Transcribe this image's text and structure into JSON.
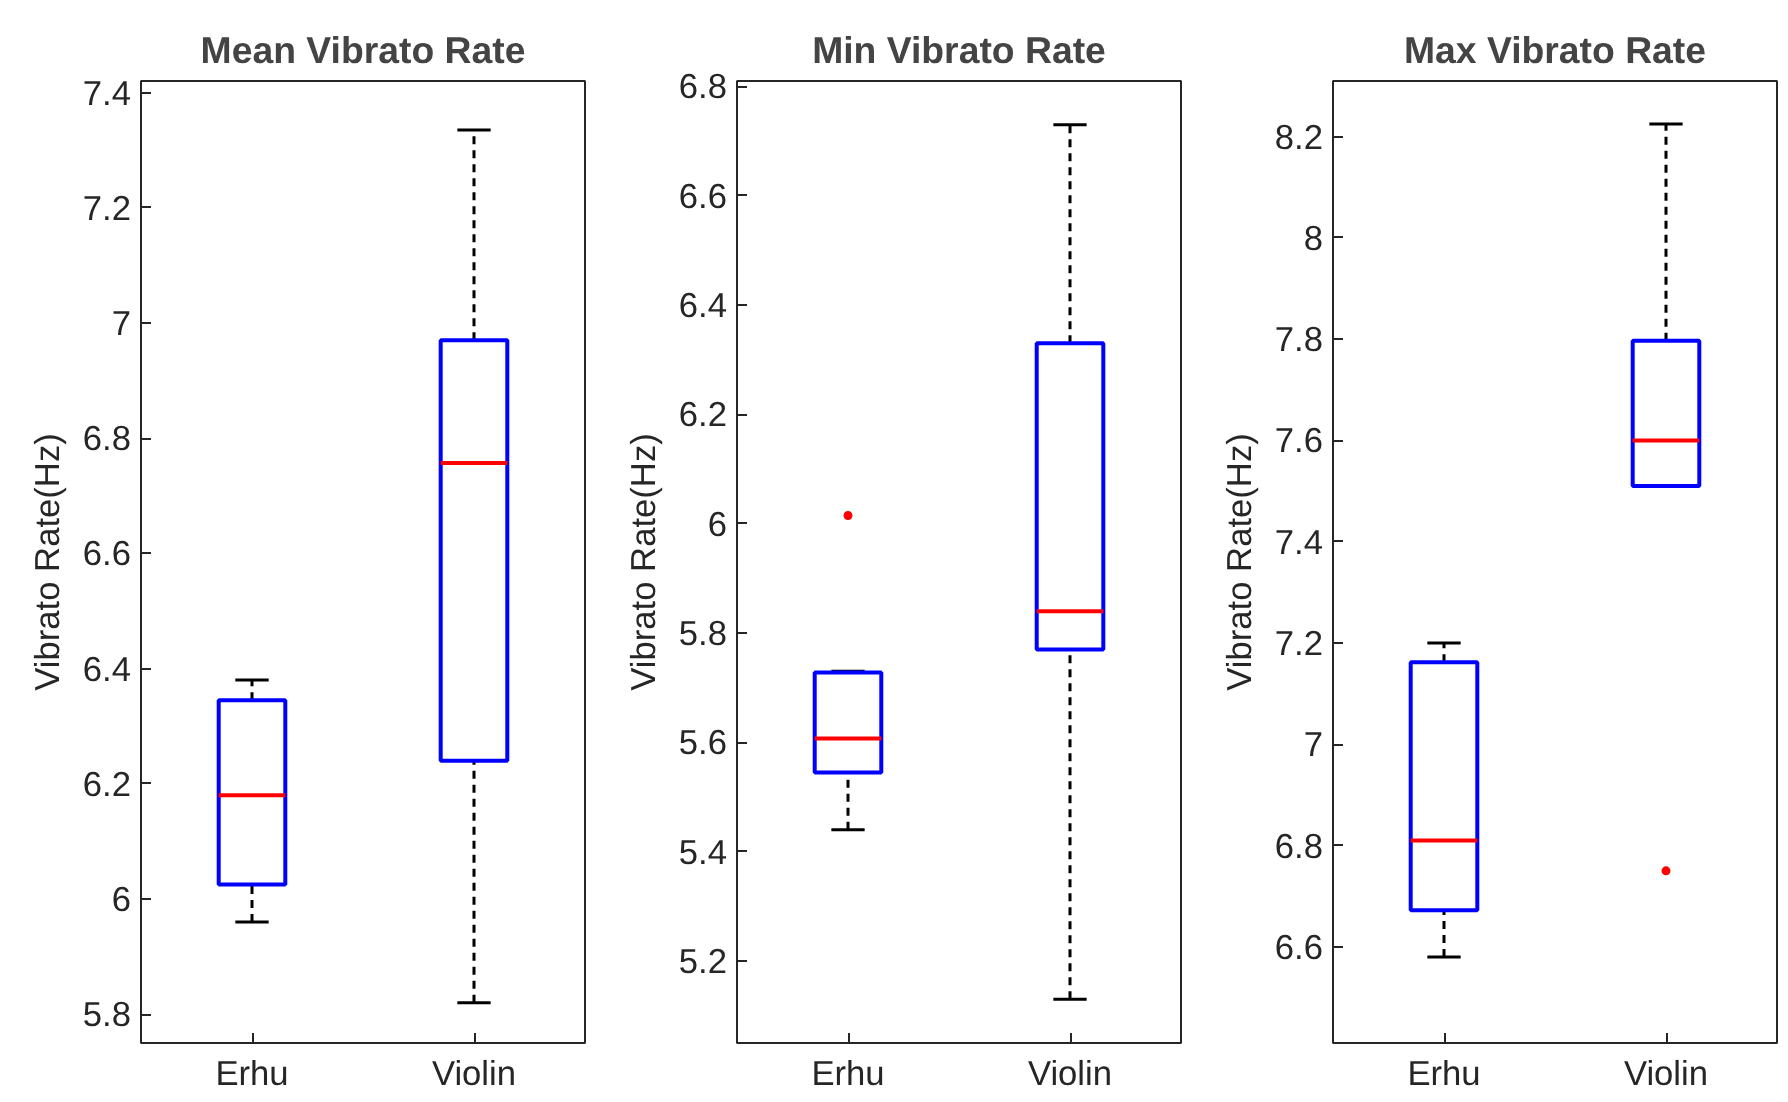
{
  "chart_data": [
    {
      "type": "box",
      "title": "Mean Vibrato Rate",
      "ylabel": "Vibrato Rate(Hz)",
      "categories": [
        "Erhu",
        "Violin"
      ],
      "series": [
        {
          "color": "#0000ff",
          "boxes": [
            {
              "low": 5.96,
              "q1": 6.025,
              "median": 6.18,
              "q3": 6.345,
              "high": 6.38
            },
            {
              "low": 5.82,
              "q1": 6.24,
              "median": 6.757,
              "q3": 6.97,
              "high": 7.335
            }
          ]
        }
      ],
      "ylim": [
        5.75,
        7.42
      ],
      "yticks": [
        5.8,
        6,
        6.2,
        6.4,
        6.6,
        6.8,
        7,
        7.2,
        7.4
      ],
      "grid": false
    },
    {
      "type": "box",
      "title": "Min Vibrato Rate",
      "ylabel": "Vibrato Rate(Hz)",
      "categories": [
        "Erhu",
        "Violin"
      ],
      "series": [
        {
          "color": "#0000ff",
          "boxes": [
            {
              "low": 5.44,
              "q1": 5.545,
              "median": 5.607,
              "q3": 5.728,
              "high": 5.73,
              "outliers": [
                6.015
              ]
            },
            {
              "low": 5.13,
              "q1": 5.77,
              "median": 5.84,
              "q3": 6.33,
              "high": 6.73
            }
          ]
        }
      ],
      "ylim": [
        5.05,
        6.81
      ],
      "yticks": [
        5.2,
        5.4,
        5.6,
        5.8,
        6,
        6.2,
        6.4,
        6.6,
        6.8
      ],
      "grid": false
    },
    {
      "type": "box",
      "title": "Max Vibrato Rate",
      "ylabel": "Vibrato Rate(Hz)",
      "categories": [
        "Erhu",
        "Violin"
      ],
      "series": [
        {
          "color": "#0000ff",
          "boxes": [
            {
              "low": 6.58,
              "q1": 6.672,
              "median": 6.81,
              "q3": 7.162,
              "high": 7.2
            },
            {
              "low": 7.51,
              "q1": 7.51,
              "median": 7.6,
              "q3": 7.797,
              "high": 8.225,
              "outliers": [
                6.75
              ]
            }
          ]
        }
      ],
      "ylim": [
        6.41,
        8.31
      ],
      "yticks": [
        6.6,
        6.8,
        7,
        7.2,
        7.4,
        7.6,
        7.8,
        8,
        8.2
      ],
      "grid": false
    }
  ]
}
